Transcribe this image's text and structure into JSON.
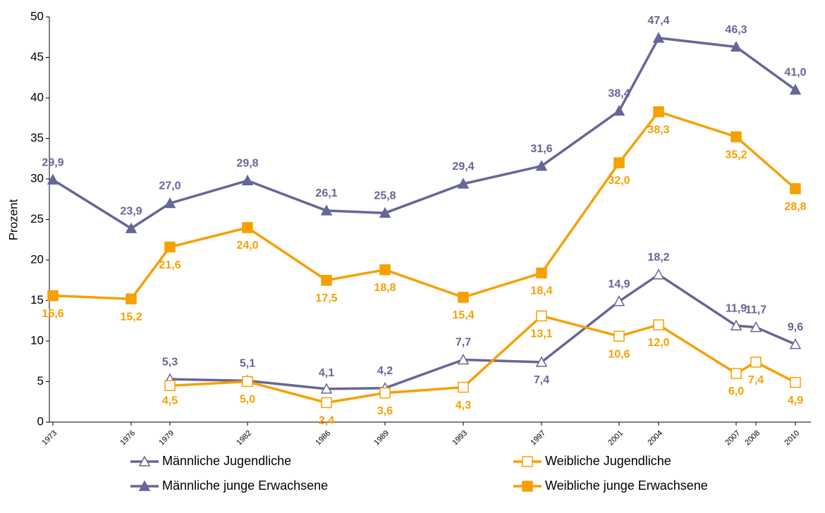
{
  "chart_data": {
    "type": "line",
    "y_label": "Prozent",
    "categories": [
      "1973",
      "1976",
      "1979",
      "1982",
      "1986",
      "1989",
      "1993",
      "1997",
      "2001",
      "2004",
      "2007",
      "2008",
      "2010"
    ],
    "ylim": [
      0,
      50
    ],
    "yticks": [
      0,
      5,
      10,
      15,
      20,
      25,
      30,
      35,
      40,
      45,
      50
    ],
    "grid": false,
    "series": [
      {
        "name": "Männliche Jugendliche",
        "color": "#666699",
        "marker": "triangle-open",
        "x": [
          "1979",
          "1982",
          "1986",
          "1989",
          "1993",
          "1997",
          "2001",
          "2004",
          "2007",
          "2008",
          "2010"
        ],
        "values": [
          5.3,
          5.1,
          4.1,
          4.2,
          7.7,
          7.4,
          14.9,
          18.2,
          11.9,
          11.7,
          9.6
        ],
        "value_labels": [
          "5,3",
          "5,1",
          "4,1",
          "4,2",
          "7,7",
          "7,4",
          "14,9",
          "18,2",
          "11,9",
          "11,7",
          "9,6"
        ]
      },
      {
        "name": "Weibliche Jugendliche",
        "color": "#f7a000",
        "marker": "square-open",
        "x": [
          "1979",
          "1982",
          "1986",
          "1989",
          "1993",
          "1997",
          "2001",
          "2004",
          "2007",
          "2008",
          "2010"
        ],
        "values": [
          4.5,
          5.0,
          2.4,
          3.6,
          4.3,
          13.1,
          10.6,
          12.0,
          6.0,
          7.4,
          4.9
        ],
        "value_labels": [
          "4,5",
          "5,0",
          "2,4",
          "3,6",
          "4,3",
          "13,1",
          "10,6",
          "12,0",
          "6,0",
          "7,4",
          "4,9"
        ]
      },
      {
        "name": "Männliche junge Erwachsene",
        "color": "#666699",
        "marker": "triangle",
        "x": [
          "1973",
          "1976",
          "1979",
          "1982",
          "1986",
          "1989",
          "1993",
          "1997",
          "2001",
          "2004",
          "2007",
          "2010"
        ],
        "values": [
          29.9,
          23.9,
          27.0,
          29.8,
          26.1,
          25.8,
          29.4,
          31.6,
          38.4,
          47.4,
          46.3,
          41.0
        ],
        "value_labels": [
          "29,9",
          "23,9",
          "27,0",
          "29,8",
          "26,1",
          "25,8",
          "29,4",
          "31,6",
          "38,4",
          "47,4",
          "46,3",
          "41,0"
        ]
      },
      {
        "name": "Weibliche junge Erwachsene",
        "color": "#f7a000",
        "marker": "square",
        "x": [
          "1973",
          "1976",
          "1979",
          "1982",
          "1986",
          "1989",
          "1993",
          "1997",
          "2001",
          "2004",
          "2007",
          "2010"
        ],
        "values": [
          15.6,
          15.2,
          21.6,
          24.0,
          17.5,
          18.8,
          15.4,
          18.4,
          32.0,
          38.3,
          35.2,
          28.8
        ],
        "value_labels": [
          "15,6",
          "15,2",
          "21,6",
          "24,0",
          "17,5",
          "18,8",
          "15,4",
          "18,4",
          "32,0",
          "38,3",
          "35,2",
          "28,8"
        ]
      }
    ]
  }
}
